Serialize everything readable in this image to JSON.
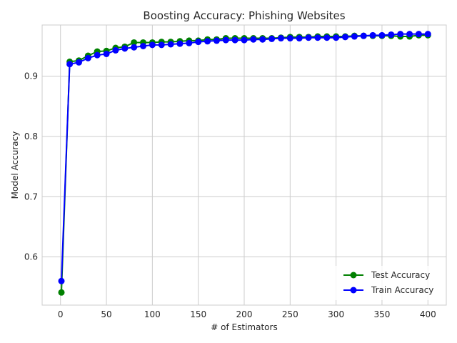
{
  "chart_data": {
    "type": "line",
    "title": "Boosting Accuracy: Phishing Websites",
    "xlabel": "# of Estimators",
    "ylabel": "Model Accuracy",
    "xlim": [
      -20,
      420
    ],
    "ylim": [
      0.52,
      0.985
    ],
    "xticks": [
      0,
      50,
      100,
      150,
      200,
      250,
      300,
      350,
      400
    ],
    "yticks": [
      0.6,
      0.7,
      0.8,
      0.9
    ],
    "x": [
      1,
      10,
      20,
      30,
      40,
      50,
      60,
      70,
      80,
      90,
      100,
      110,
      120,
      130,
      140,
      150,
      160,
      170,
      180,
      190,
      200,
      210,
      220,
      230,
      240,
      250,
      260,
      270,
      280,
      290,
      300,
      310,
      320,
      330,
      340,
      350,
      360,
      370,
      380,
      390,
      400
    ],
    "series": [
      {
        "name": "Test Accuracy",
        "color": "#008000",
        "values": [
          0.541,
          0.924,
          0.926,
          0.934,
          0.941,
          0.942,
          0.947,
          0.949,
          0.956,
          0.956,
          0.956,
          0.957,
          0.957,
          0.958,
          0.959,
          0.959,
          0.961,
          0.961,
          0.963,
          0.963,
          0.963,
          0.963,
          0.963,
          0.963,
          0.964,
          0.965,
          0.965,
          0.965,
          0.966,
          0.966,
          0.966,
          0.966,
          0.967,
          0.967,
          0.967,
          0.967,
          0.967,
          0.966,
          0.966,
          0.968,
          0.968
        ]
      },
      {
        "name": "Train Accuracy",
        "color": "#0000ff",
        "values": [
          0.56,
          0.92,
          0.923,
          0.93,
          0.935,
          0.937,
          0.943,
          0.946,
          0.948,
          0.95,
          0.952,
          0.952,
          0.953,
          0.954,
          0.955,
          0.957,
          0.958,
          0.959,
          0.96,
          0.96,
          0.96,
          0.961,
          0.961,
          0.962,
          0.963,
          0.963,
          0.963,
          0.964,
          0.964,
          0.964,
          0.964,
          0.965,
          0.966,
          0.967,
          0.968,
          0.968,
          0.969,
          0.97,
          0.97,
          0.97,
          0.97
        ]
      }
    ],
    "grid": true,
    "legend": "lower-right"
  }
}
